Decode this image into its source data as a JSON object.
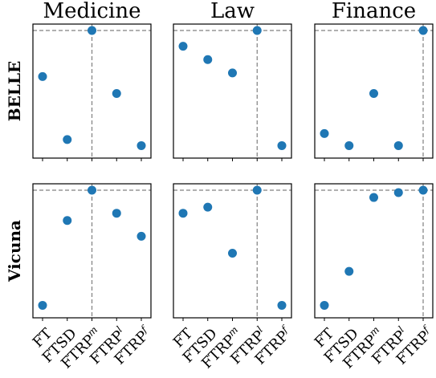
{
  "colors": {
    "marker": "#1f77b4",
    "reference_line": "#808080"
  },
  "chart_data": {
    "type": "scatter",
    "columns": [
      "Medicine",
      "Law",
      "Finance"
    ],
    "rows": [
      "BELLE",
      "Vicuna"
    ],
    "categories": [
      "FT",
      "FTSD",
      "FTRP",
      "FTRP",
      "FTRP"
    ],
    "category_superscripts": [
      "",
      "",
      "m",
      "l",
      "f"
    ],
    "grid": false,
    "ylim": [
      0,
      1
    ],
    "panels": [
      {
        "row": "BELLE",
        "column": "Medicine",
        "values": [
          0.62,
          0.1,
          1.0,
          0.48,
          0.05
        ],
        "ref_index": 2
      },
      {
        "row": "BELLE",
        "column": "Law",
        "values": [
          0.87,
          0.76,
          0.65,
          1.0,
          0.05
        ],
        "ref_index": 3
      },
      {
        "row": "BELLE",
        "column": "Finance",
        "values": [
          0.15,
          0.05,
          0.48,
          0.05,
          1.0
        ],
        "ref_index": 4
      },
      {
        "row": "Vicuna",
        "column": "Medicine",
        "values": [
          0.05,
          0.75,
          1.0,
          0.81,
          0.62
        ],
        "ref_index": 2
      },
      {
        "row": "Vicuna",
        "column": "Law",
        "values": [
          0.81,
          0.86,
          0.48,
          1.0,
          0.05
        ],
        "ref_index": 3
      },
      {
        "row": "Vicuna",
        "column": "Finance",
        "values": [
          0.05,
          0.33,
          0.94,
          0.98,
          1.0
        ],
        "ref_index": 4
      }
    ]
  }
}
